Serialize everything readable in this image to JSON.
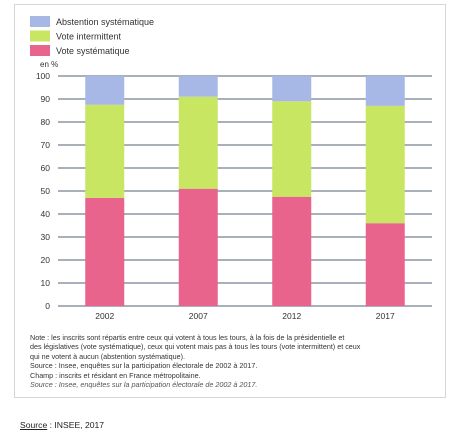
{
  "chart_data": {
    "type": "bar",
    "stacked": true,
    "unit_label": "en %",
    "categories": [
      "2002",
      "2007",
      "2012",
      "2017"
    ],
    "ylim": [
      0,
      100
    ],
    "yticks": [
      0,
      10,
      20,
      30,
      40,
      50,
      60,
      70,
      80,
      90,
      100
    ],
    "grid": true,
    "legend_position": "top-left",
    "series": [
      {
        "name": "Vote systématique",
        "color": "#e8648c",
        "values": [
          47,
          51,
          47.5,
          36
        ]
      },
      {
        "name": "Vote intermittent",
        "color": "#c8e661",
        "values": [
          40.5,
          40,
          41.5,
          51
        ]
      },
      {
        "name": "Abstention systématique",
        "color": "#a8b8e6",
        "values": [
          12.5,
          9,
          11,
          13
        ]
      }
    ],
    "legend_order": [
      "Abstention systématique",
      "Vote intermittent",
      "Vote systématique"
    ]
  },
  "notes": {
    "line1": "Note : les inscrits sont répartis entre ceux qui votent à tous les tours, à la fois de la présidentielle et",
    "line2": "des législatives (vote systématique), ceux qui votent mais pas à tous les tours (vote intermittent) et ceux",
    "line3": "qui ne votent à aucun (abstention systématique).",
    "line4": "Source : Insee, enquêtes sur la participation électorale de 2002 à 2017.",
    "line5": "Champ : inscrits et résidant en France métropolitaine.",
    "line6": "Source : Insee, enquêtes sur la participation électorale de 2002 à 2017."
  },
  "source": {
    "label": "Source",
    "text": " : INSEE, 2017"
  }
}
